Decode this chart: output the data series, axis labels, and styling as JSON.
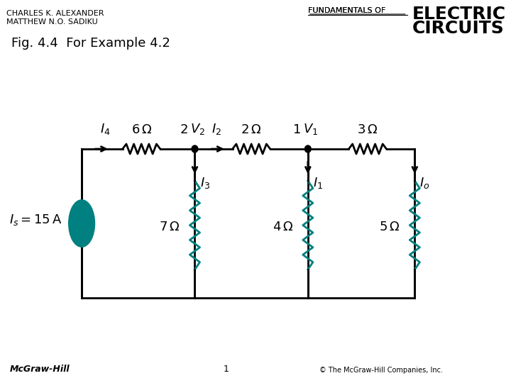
{
  "title": "Fig. 4.4  For Example 4.2",
  "header_left1": "CHARLES K. ALEXANDER",
  "header_left2": "MATTHEW N.O. SADIKU",
  "header_right1": "FUNDAMENTALS OF",
  "header_right2": "ELECTRIC",
  "header_right3": "CIRCUITS",
  "footer_left": "McGraw-Hill",
  "footer_center": "1",
  "footer_right": "© The McGraw-Hill Companies, Inc.",
  "bg_color": "#ffffff",
  "wire_color": "#000000",
  "resistor_color_horiz": "#000000",
  "resistor_color_vert": "#008080",
  "current_source_color": "#008080",
  "node_color": "#000000"
}
